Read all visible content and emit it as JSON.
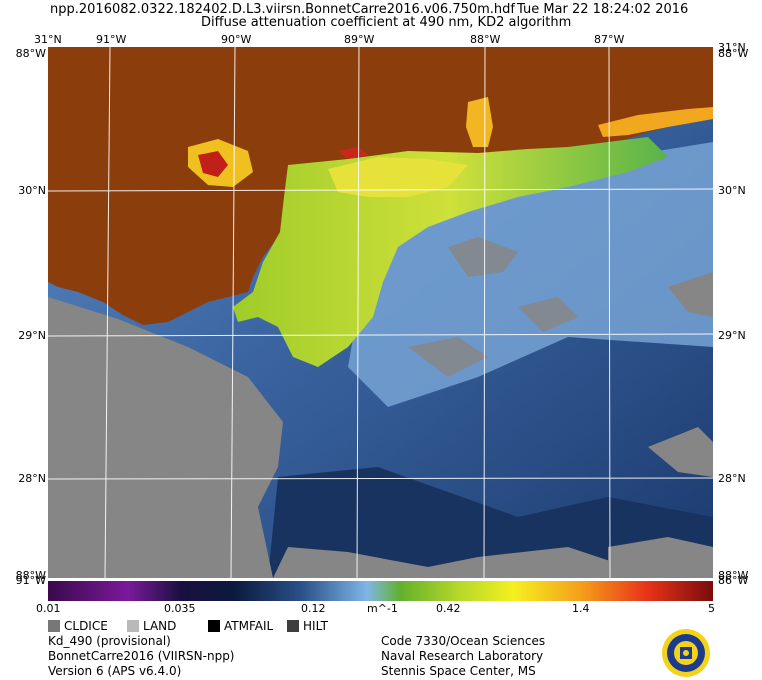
{
  "header": {
    "filename": "npp.2016082.0322.182402.D.L3.viirsn.BonnetCarre2016.v06.750m.hdf",
    "datetime": "Tue Mar 22 18:24:02 2016",
    "product_title": "Diffuse attenuation coefficient at 490 nm, KD2 algorithm"
  },
  "axes": {
    "top_lon_labels": [
      "91°W",
      "90°W",
      "89°W",
      "88°W",
      "87°W"
    ],
    "corner_top_left": "31°N",
    "corner_top_right": "31°N",
    "corner_bottom_left": "91°W",
    "corner_bottom_right": "86°W",
    "lat_labels": [
      "30°N",
      "29°N",
      "28°N"
    ],
    "left_top_overlap": "88°W",
    "left_bottom_overlap": "88°W",
    "left_bottom_lat": "91°W",
    "right_top_overlap": "88°W"
  },
  "colorbar": {
    "ticks": [
      "0.01",
      "0.035",
      "0.12",
      "m^-1",
      "0.42",
      "1.4",
      "5"
    ],
    "scale": "log",
    "range": [
      0.01,
      5
    ],
    "units": "m^-1"
  },
  "legend": [
    {
      "key": "cldice",
      "label": "CLDICE",
      "color": "#777777"
    },
    {
      "key": "land",
      "label": "LAND",
      "color": "#b9b9b9"
    },
    {
      "key": "atmfail",
      "label": "ATMFAIL",
      "color": "#000000"
    },
    {
      "key": "hilt",
      "label": "HILT",
      "color": "#3e3e3e"
    }
  ],
  "info_left": [
    "Kd_490 (provisional)",
    "BonnetCarre2016 (VIIRSN-npp)",
    "Version 6 (APS v6.4.0)"
  ],
  "info_right": [
    "Code 7330/Ocean Sciences",
    "Naval Research Laboratory",
    "Stennis Space Center, MS"
  ],
  "colors": {
    "land": "#8b3d0c",
    "cloud": "#868686",
    "deep_water": "#1f3f73",
    "mid_water": "#5a86bd",
    "turbid": "#b9d630"
  }
}
